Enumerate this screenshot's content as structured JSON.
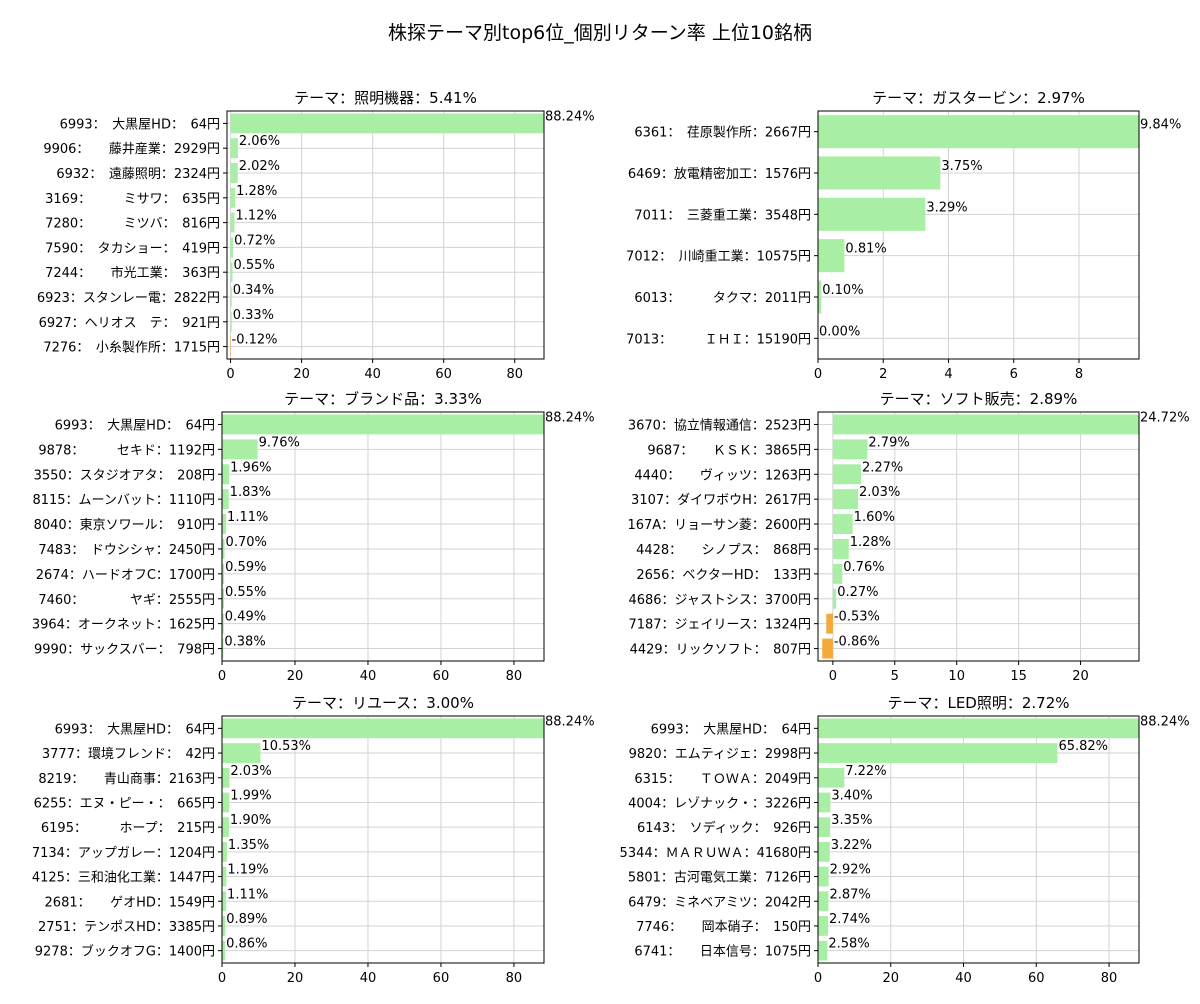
{
  "figure_title": "株探テーマ別top6位_個別リターン率 上位10銘柄",
  "colors": {
    "positive": "#a8eea4",
    "negative": "#f5a939",
    "grid": "#d3d3d3"
  },
  "chart_data": [
    {
      "type": "bar",
      "orientation": "horizontal",
      "title": "テーマ：照明機器：5.41%",
      "categories": [
        "6993：　大黒屋HD：　64円",
        "9906：　　藤井産業：2929円",
        "6932：　遠藤照明：2324円",
        "3169：　　　ミサワ：　635円",
        "7280：　　　ミツバ：　816円",
        "7590：　タカショー：　419円",
        "7244：　　市光工業：　363円",
        "6923：スタンレー電：2822円",
        "6927：ヘリオス　テ：　921円",
        "7276：　小糸製作所：1715円"
      ],
      "values": [
        88.24,
        2.06,
        2.02,
        1.28,
        1.12,
        0.72,
        0.55,
        0.34,
        0.33,
        -0.12
      ],
      "value_labels": [
        "88.24%",
        "2.06%",
        "2.02%",
        "1.28%",
        "1.12%",
        "0.72%",
        "0.55%",
        "0.34%",
        "0.33%",
        "-0.12%"
      ],
      "xlim": [
        -1,
        88.24
      ],
      "xticks": [
        0,
        20,
        40,
        60,
        80
      ],
      "xtick_labels": [
        "0",
        "20",
        "40",
        "60",
        "80"
      ],
      "grid": true
    },
    {
      "type": "bar",
      "orientation": "horizontal",
      "title": "テーマ：ガスタービン：2.97%",
      "categories": [
        "6361：　荏原製作所：2667円",
        "6469：放電精密加工：1576円",
        "7011：　三菱重工業：3548円",
        "7012：　川崎重工業：10575円",
        "6013：　　　タクマ：2011円",
        "7013：　　　ＩＨＩ：15190円"
      ],
      "values": [
        9.84,
        3.75,
        3.29,
        0.81,
        0.1,
        0.0
      ],
      "value_labels": [
        "9.84%",
        "3.75%",
        "3.29%",
        "0.81%",
        "0.10%",
        "0.00%"
      ],
      "xlim": [
        0,
        9.84
      ],
      "xticks": [
        0,
        2,
        4,
        6,
        8
      ],
      "xtick_labels": [
        "0",
        "2",
        "4",
        "6",
        "8"
      ],
      "grid": true
    },
    {
      "type": "bar",
      "orientation": "horizontal",
      "title": "テーマ：ブランド品：3.33%",
      "categories": [
        "6993：　大黒屋HD：　64円",
        "9878：　　　セキド：1192円",
        "3550：スタジオアタ：　208円",
        "8115：ムーンバット：1110円",
        "8040：東京ソワール：　910円",
        "7483：　ドウシシャ：2450円",
        "2674：ハードオフC：1700円",
        "7460：　　　　ヤギ：2555円",
        "3964：オークネット：1625円",
        "9990：サックスバー：　798円"
      ],
      "values": [
        88.24,
        9.76,
        1.96,
        1.83,
        1.11,
        0.7,
        0.59,
        0.55,
        0.49,
        0.38
      ],
      "value_labels": [
        "88.24%",
        "9.76%",
        "1.96%",
        "1.83%",
        "1.11%",
        "0.70%",
        "0.59%",
        "0.55%",
        "0.49%",
        "0.38%"
      ],
      "xlim": [
        0,
        88.24
      ],
      "xticks": [
        0,
        20,
        40,
        60,
        80
      ],
      "xtick_labels": [
        "0",
        "20",
        "40",
        "60",
        "80"
      ],
      "grid": true
    },
    {
      "type": "bar",
      "orientation": "horizontal",
      "title": "テーマ：ソフト販売：2.89%",
      "categories": [
        "3670：協立情報通信：2523円",
        "9687：　　ＫＳＫ：3865円",
        "4440：　　ヴィッツ：1263円",
        "3107：ダイワボウH：2617円",
        "167A：リョーサン菱：2600円",
        "4428：　　シノプス：　868円",
        "2656：ベクターHD：　133円",
        "4686：ジャストシス：3700円",
        "7187：ジェイリース：1324円",
        "4429：リックソフト：　807円"
      ],
      "values": [
        24.72,
        2.79,
        2.27,
        2.03,
        1.6,
        1.28,
        0.76,
        0.27,
        -0.53,
        -0.86
      ],
      "value_labels": [
        "24.72%",
        "2.79%",
        "2.27%",
        "2.03%",
        "1.60%",
        "1.28%",
        "0.76%",
        "0.27%",
        "-0.53%",
        "-0.86%"
      ],
      "xlim": [
        -1.2,
        24.72
      ],
      "xticks": [
        0,
        5,
        10,
        15,
        20
      ],
      "xtick_labels": [
        "0",
        "5",
        "10",
        "15",
        "20"
      ],
      "grid": true
    },
    {
      "type": "bar",
      "orientation": "horizontal",
      "title": "テーマ：リユース：3.00%",
      "categories": [
        "6993：　大黒屋HD：　64円",
        "3777：環境フレンド：　42円",
        "8219：　　青山商事：2163円",
        "6255：エヌ・ピー・：　665円",
        "6195：　　　ホープ：　215円",
        "7134：アップガレー：1204円",
        "4125：三和油化工業：1447円",
        "2681：　　ゲオHD：1549円",
        "2751：テンポスHD：3385円",
        "9278：ブックオフG：1400円"
      ],
      "values": [
        88.24,
        10.53,
        2.03,
        1.99,
        1.9,
        1.35,
        1.19,
        1.11,
        0.89,
        0.86
      ],
      "value_labels": [
        "88.24%",
        "10.53%",
        "2.03%",
        "1.99%",
        "1.90%",
        "1.35%",
        "1.19%",
        "1.11%",
        "0.89%",
        "0.86%"
      ],
      "xlim": [
        0,
        88.24
      ],
      "xticks": [
        0,
        20,
        40,
        60,
        80
      ],
      "xtick_labels": [
        "0",
        "20",
        "40",
        "60",
        "80"
      ],
      "grid": true
    },
    {
      "type": "bar",
      "orientation": "horizontal",
      "title": "テーマ：LED照明：2.72%",
      "categories": [
        "6993：　大黒屋HD：　64円",
        "9820：エムティジェ：2998円",
        "6315：　　ＴＯＷＡ：2049円",
        "4004：レゾナック・：3226円",
        "6143：　ソディック：　926円",
        "5344：ＭＡＲＵＷＡ：41680円",
        "5801：古河電気工業：7126円",
        "6479：ミネベアミツ：2042円",
        "7746：　　岡本硝子：　150円",
        "6741：　　日本信号：1075円"
      ],
      "values": [
        88.24,
        65.82,
        7.22,
        3.4,
        3.35,
        3.22,
        2.92,
        2.87,
        2.74,
        2.58
      ],
      "value_labels": [
        "88.24%",
        "65.82%",
        "7.22%",
        "3.40%",
        "3.35%",
        "3.22%",
        "2.92%",
        "2.87%",
        "2.74%",
        "2.58%"
      ],
      "xlim": [
        0,
        88.24
      ],
      "xticks": [
        0,
        20,
        40,
        60,
        80
      ],
      "xtick_labels": [
        "0",
        "20",
        "40",
        "60",
        "80"
      ],
      "grid": true
    }
  ]
}
